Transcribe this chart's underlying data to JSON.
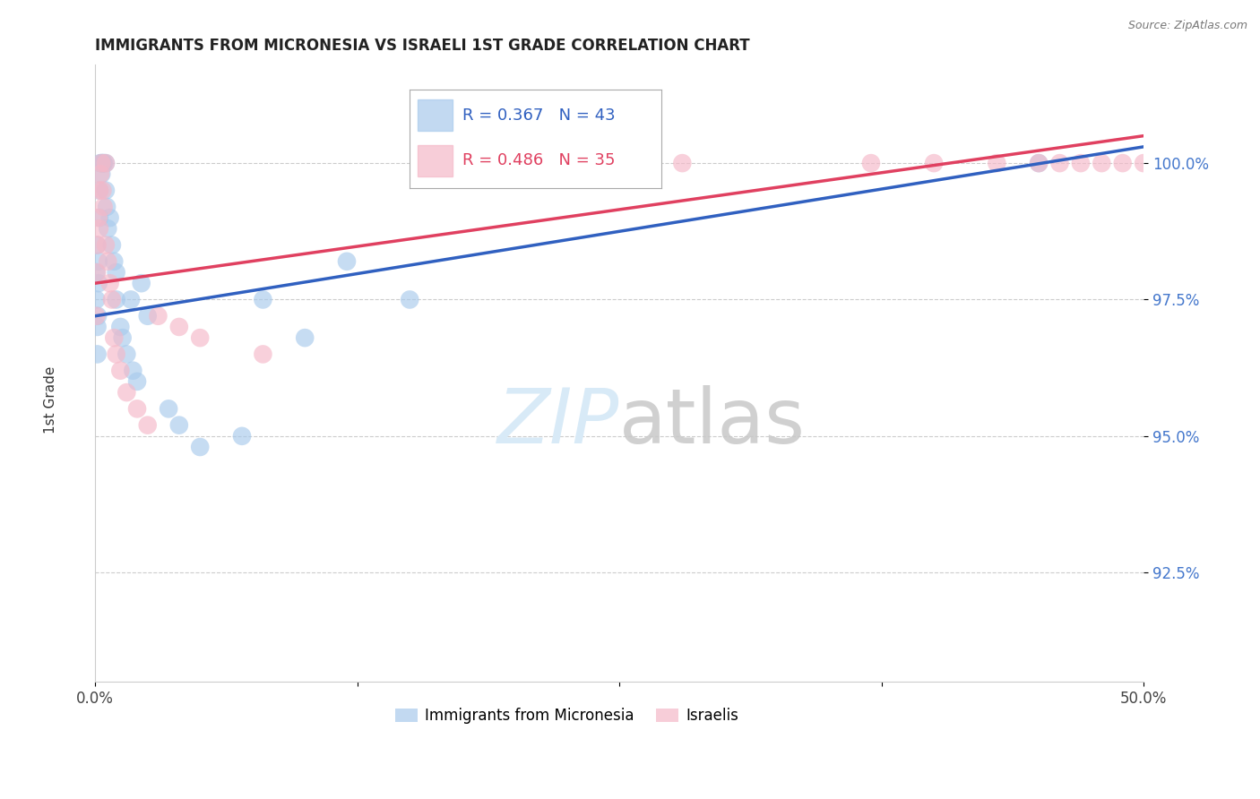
{
  "title": "IMMIGRANTS FROM MICRONESIA VS ISRAELI 1ST GRADE CORRELATION CHART",
  "source": "Source: ZipAtlas.com",
  "ylabel": "1st Grade",
  "xlim": [
    0.0,
    50.0
  ],
  "ylim": [
    90.5,
    101.8
  ],
  "xticks": [
    0.0,
    12.5,
    25.0,
    37.5,
    50.0
  ],
  "xticklabels": [
    "0.0%",
    "",
    "",
    "",
    "50.0%"
  ],
  "yticks": [
    92.5,
    95.0,
    97.5,
    100.0
  ],
  "yticklabels": [
    "92.5%",
    "95.0%",
    "97.5%",
    "100.0%"
  ],
  "R_blue": 0.367,
  "N_blue": 43,
  "R_pink": 0.486,
  "N_pink": 35,
  "legend_label_blue": "Immigrants from Micronesia",
  "legend_label_pink": "Israelis",
  "blue_color": "#A8CAEC",
  "pink_color": "#F5B8C8",
  "blue_line_color": "#3060C0",
  "pink_line_color": "#E04060",
  "watermark_color": "#D8EAF7",
  "ytick_color": "#4477CC",
  "title_color": "#222222",
  "source_color": "#777777",
  "blue_x": [
    0.05,
    0.05,
    0.08,
    0.1,
    0.1,
    0.12,
    0.15,
    0.15,
    0.2,
    0.2,
    0.25,
    0.3,
    0.3,
    0.35,
    0.4,
    0.4,
    0.5,
    0.5,
    0.55,
    0.6,
    0.7,
    0.8,
    0.9,
    1.0,
    1.0,
    1.2,
    1.3,
    1.5,
    1.7,
    1.8,
    2.0,
    2.2,
    2.5,
    3.5,
    4.0,
    5.0,
    7.0,
    8.0,
    10.0,
    12.0,
    15.0,
    25.0,
    45.0
  ],
  "blue_y": [
    97.5,
    98.0,
    98.5,
    97.0,
    96.5,
    97.2,
    97.8,
    98.2,
    99.0,
    99.5,
    100.0,
    100.0,
    99.8,
    100.0,
    100.0,
    100.0,
    100.0,
    99.5,
    99.2,
    98.8,
    99.0,
    98.5,
    98.2,
    98.0,
    97.5,
    97.0,
    96.8,
    96.5,
    97.5,
    96.2,
    96.0,
    97.8,
    97.2,
    95.5,
    95.2,
    94.8,
    95.0,
    97.5,
    96.8,
    98.2,
    97.5,
    100.0,
    100.0
  ],
  "pink_x": [
    0.05,
    0.08,
    0.1,
    0.15,
    0.2,
    0.2,
    0.25,
    0.3,
    0.35,
    0.4,
    0.5,
    0.5,
    0.6,
    0.7,
    0.8,
    0.9,
    1.0,
    1.2,
    1.5,
    2.0,
    2.5,
    3.0,
    4.0,
    5.0,
    8.0,
    28.0,
    37.0,
    40.0,
    43.0,
    45.0,
    46.0,
    47.0,
    48.0,
    49.0,
    50.0
  ],
  "pink_y": [
    97.2,
    98.0,
    98.5,
    99.0,
    99.5,
    98.8,
    99.8,
    100.0,
    99.5,
    99.2,
    100.0,
    98.5,
    98.2,
    97.8,
    97.5,
    96.8,
    96.5,
    96.2,
    95.8,
    95.5,
    95.2,
    97.2,
    97.0,
    96.8,
    96.5,
    100.0,
    100.0,
    100.0,
    100.0,
    100.0,
    100.0,
    100.0,
    100.0,
    100.0,
    100.0
  ],
  "blue_trendline_x": [
    0.0,
    50.0
  ],
  "blue_trendline_y": [
    97.2,
    100.3
  ],
  "pink_trendline_x": [
    0.0,
    50.0
  ],
  "pink_trendline_y": [
    97.8,
    100.5
  ]
}
